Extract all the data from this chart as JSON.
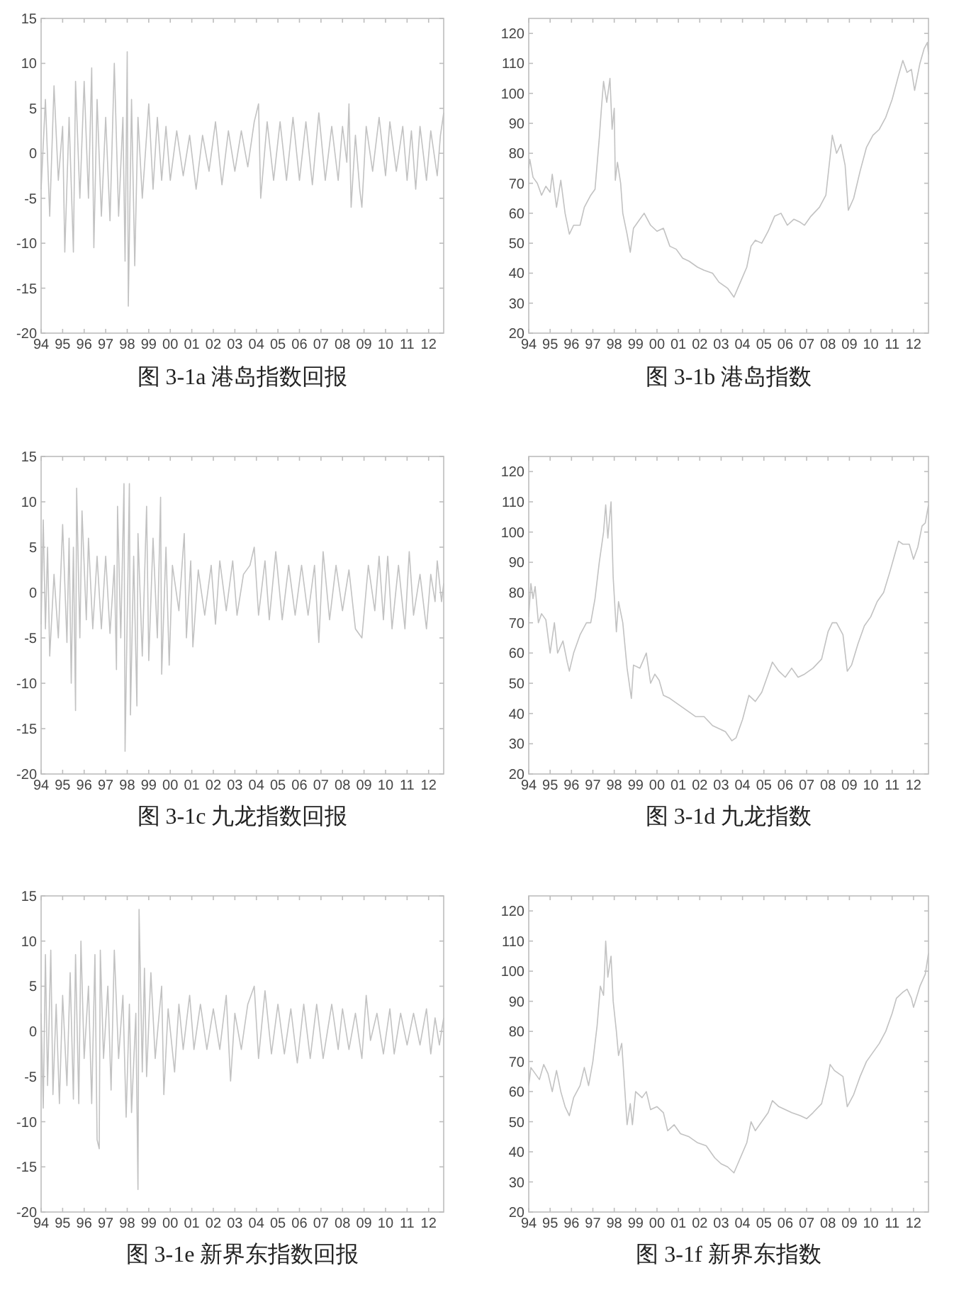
{
  "chart_data": [
    {
      "type": "line",
      "title": "图 3-1a 港岛指数回报",
      "color": "#c2c2c2",
      "xlim": [
        1994,
        2012.7
      ],
      "ylim": [
        -20,
        15
      ],
      "yticks": [
        -20,
        -15,
        -10,
        -5,
        0,
        5,
        10,
        15
      ],
      "xticks": [
        {
          "value": 1994,
          "label": "94"
        },
        {
          "value": 1995,
          "label": "95"
        },
        {
          "value": 1996,
          "label": "96"
        },
        {
          "value": 1997,
          "label": "97"
        },
        {
          "value": 1998,
          "label": "98"
        },
        {
          "value": 1999,
          "label": "99"
        },
        {
          "value": 2000,
          "label": "00"
        },
        {
          "value": 2001,
          "label": "01"
        },
        {
          "value": 2002,
          "label": "02"
        },
        {
          "value": 2003,
          "label": "03"
        },
        {
          "value": 2004,
          "label": "04"
        },
        {
          "value": 2005,
          "label": "05"
        },
        {
          "value": 2006,
          "label": "06"
        },
        {
          "value": 2007,
          "label": "07"
        },
        {
          "value": 2008,
          "label": "08"
        },
        {
          "value": 2009,
          "label": "09"
        },
        {
          "value": 2010,
          "label": "10"
        },
        {
          "value": 2011,
          "label": "11"
        },
        {
          "value": 2012,
          "label": "12"
        }
      ],
      "x": [
        1994.0,
        1994.2,
        1994.4,
        1994.6,
        1994.8,
        1995.0,
        1995.1,
        1995.3,
        1995.5,
        1995.6,
        1995.8,
        1996.0,
        1996.2,
        1996.35,
        1996.45,
        1996.6,
        1996.8,
        1997.0,
        1997.2,
        1997.4,
        1997.6,
        1997.8,
        1997.9,
        1998.0,
        1998.05,
        1998.2,
        1998.35,
        1998.5,
        1998.7,
        1999.0,
        1999.2,
        1999.4,
        1999.6,
        1999.8,
        2000.0,
        2000.3,
        2000.6,
        2000.9,
        2001.2,
        2001.5,
        2001.8,
        2002.1,
        2002.4,
        2002.7,
        2003.0,
        2003.3,
        2003.6,
        2003.9,
        2004.1,
        2004.2,
        2004.5,
        2004.8,
        2005.1,
        2005.4,
        2005.7,
        2006.0,
        2006.3,
        2006.6,
        2006.9,
        2007.2,
        2007.5,
        2007.8,
        2008.0,
        2008.2,
        2008.3,
        2008.4,
        2008.6,
        2008.8,
        2008.9,
        2009.1,
        2009.4,
        2009.7,
        2010.0,
        2010.2,
        2010.5,
        2010.8,
        2011.0,
        2011.2,
        2011.4,
        2011.6,
        2011.9,
        2012.1,
        2012.4,
        2012.55,
        2012.7
      ],
      "values": [
        -4,
        6,
        -7,
        7.5,
        -3,
        3,
        -11,
        4,
        -11,
        8,
        -5,
        8,
        -5,
        9.5,
        -10.5,
        6,
        -7,
        4,
        -7.5,
        10,
        -7,
        4,
        -12,
        11.3,
        -17,
        6,
        -12.5,
        4,
        -5,
        5.5,
        -4,
        4,
        -3,
        3,
        -3,
        2.5,
        -2.5,
        2,
        -4,
        2,
        -2,
        3.5,
        -3.5,
        2.5,
        -2,
        2.5,
        -1.5,
        3.5,
        5.5,
        -5,
        3.5,
        -3,
        3.5,
        -3,
        4,
        -3,
        3.5,
        -3.5,
        4.5,
        -3,
        3,
        -3,
        3,
        -1,
        5.5,
        -6,
        2,
        -4,
        -6,
        3,
        -2,
        4,
        -2.5,
        3.5,
        -2,
        3,
        -3,
        2.5,
        -4,
        3,
        -3,
        2.5,
        -2.5,
        2,
        4.5
      ]
    },
    {
      "type": "line",
      "title": "图 3-1b 港岛指数",
      "color": "#c2c2c2",
      "xlim": [
        1994,
        2012.7
      ],
      "ylim": [
        20,
        125
      ],
      "yticks": [
        20,
        30,
        40,
        50,
        60,
        70,
        80,
        90,
        100,
        110,
        120
      ],
      "xticks": [
        {
          "value": 1994,
          "label": "94"
        },
        {
          "value": 1995,
          "label": "95"
        },
        {
          "value": 1996,
          "label": "96"
        },
        {
          "value": 1997,
          "label": "97"
        },
        {
          "value": 1998,
          "label": "98"
        },
        {
          "value": 1999,
          "label": "99"
        },
        {
          "value": 2000,
          "label": "00"
        },
        {
          "value": 2001,
          "label": "01"
        },
        {
          "value": 2002,
          "label": "02"
        },
        {
          "value": 2003,
          "label": "03"
        },
        {
          "value": 2004,
          "label": "04"
        },
        {
          "value": 2005,
          "label": "05"
        },
        {
          "value": 2006,
          "label": "06"
        },
        {
          "value": 2007,
          "label": "07"
        },
        {
          "value": 2008,
          "label": "08"
        },
        {
          "value": 2009,
          "label": "09"
        },
        {
          "value": 2010,
          "label": "10"
        },
        {
          "value": 2011,
          "label": "11"
        },
        {
          "value": 2012,
          "label": "12"
        }
      ],
      "x": [
        1994.0,
        1994.05,
        1994.2,
        1994.4,
        1994.6,
        1994.8,
        1995.0,
        1995.1,
        1995.3,
        1995.5,
        1995.7,
        1995.9,
        1996.1,
        1996.4,
        1996.6,
        1996.9,
        1997.1,
        1997.3,
        1997.4,
        1997.5,
        1997.65,
        1997.8,
        1997.9,
        1998.0,
        1998.05,
        1998.15,
        1998.3,
        1998.4,
        1998.6,
        1998.75,
        1998.9,
        1999.2,
        1999.4,
        1999.7,
        2000.0,
        2000.3,
        2000.6,
        2000.9,
        2001.2,
        2001.5,
        2001.9,
        2002.2,
        2002.6,
        2002.9,
        2003.3,
        2003.6,
        2003.9,
        2004.2,
        2004.4,
        2004.6,
        2004.9,
        2005.2,
        2005.5,
        2005.8,
        2006.1,
        2006.4,
        2006.7,
        2006.9,
        2007.2,
        2007.6,
        2007.9,
        2008.1,
        2008.2,
        2008.4,
        2008.6,
        2008.8,
        2008.95,
        2009.2,
        2009.5,
        2009.8,
        2010.1,
        2010.4,
        2010.7,
        2011.0,
        2011.3,
        2011.5,
        2011.7,
        2011.9,
        2012.05,
        2012.3,
        2012.5,
        2012.65,
        2012.7
      ],
      "values": [
        75,
        78,
        72,
        70,
        66,
        69,
        67,
        73,
        62,
        71,
        60,
        53,
        56,
        56,
        62,
        66,
        68,
        85,
        95,
        104,
        97,
        105,
        88,
        95,
        71,
        77,
        70,
        60,
        53,
        47,
        55,
        58,
        60,
        56,
        54,
        55,
        49,
        48,
        45,
        44,
        42,
        41,
        40,
        37,
        35,
        32,
        37,
        42,
        49,
        51,
        50,
        54,
        59,
        60,
        56,
        58,
        57,
        56,
        59,
        62,
        66,
        79,
        86,
        80,
        83,
        76,
        61,
        65,
        74,
        82,
        86,
        88,
        92,
        98,
        106,
        111,
        107,
        108,
        101,
        110,
        115,
        117,
        113
      ]
    },
    {
      "type": "line",
      "title": "图 3-1c 九龙指数回报",
      "color": "#c2c2c2",
      "xlim": [
        1994,
        2012.7
      ],
      "ylim": [
        -20,
        15
      ],
      "yticks": [
        -20,
        -15,
        -10,
        -5,
        0,
        5,
        10,
        15
      ],
      "xticks": [
        {
          "value": 1994,
          "label": "94"
        },
        {
          "value": 1995,
          "label": "95"
        },
        {
          "value": 1996,
          "label": "96"
        },
        {
          "value": 1997,
          "label": "97"
        },
        {
          "value": 1998,
          "label": "98"
        },
        {
          "value": 1999,
          "label": "99"
        },
        {
          "value": 2000,
          "label": "00"
        },
        {
          "value": 2001,
          "label": "01"
        },
        {
          "value": 2002,
          "label": "02"
        },
        {
          "value": 2003,
          "label": "03"
        },
        {
          "value": 2004,
          "label": "04"
        },
        {
          "value": 2005,
          "label": "05"
        },
        {
          "value": 2006,
          "label": "06"
        },
        {
          "value": 2007,
          "label": "07"
        },
        {
          "value": 2008,
          "label": "08"
        },
        {
          "value": 2009,
          "label": "09"
        },
        {
          "value": 2010,
          "label": "10"
        },
        {
          "value": 2011,
          "label": "11"
        },
        {
          "value": 2012,
          "label": "12"
        }
      ],
      "x": [
        1994.0,
        1994.1,
        1994.2,
        1994.3,
        1994.4,
        1994.6,
        1994.8,
        1995.0,
        1995.2,
        1995.3,
        1995.4,
        1995.5,
        1995.6,
        1995.65,
        1995.8,
        1995.9,
        1996.1,
        1996.2,
        1996.4,
        1996.6,
        1996.8,
        1997.0,
        1997.2,
        1997.4,
        1997.5,
        1997.55,
        1997.7,
        1997.85,
        1997.9,
        1998.1,
        1998.15,
        1998.3,
        1998.45,
        1998.5,
        1998.7,
        1998.9,
        1999.0,
        1999.2,
        1999.4,
        1999.55,
        1999.6,
        1999.8,
        1999.95,
        2000.1,
        2000.4,
        2000.65,
        2000.75,
        2000.95,
        2001.05,
        2001.3,
        2001.6,
        2001.9,
        2002.1,
        2002.3,
        2002.6,
        2002.9,
        2003.1,
        2003.4,
        2003.7,
        2003.9,
        2004.1,
        2004.4,
        2004.6,
        2004.9,
        2005.2,
        2005.5,
        2005.8,
        2006.1,
        2006.4,
        2006.7,
        2006.9,
        2007.1,
        2007.4,
        2007.7,
        2008.0,
        2008.3,
        2008.6,
        2008.9,
        2009.2,
        2009.5,
        2009.7,
        2009.9,
        2010.1,
        2010.3,
        2010.6,
        2010.9,
        2011.1,
        2011.3,
        2011.6,
        2011.9,
        2012.1,
        2012.3,
        2012.4,
        2012.6,
        2012.7
      ],
      "values": [
        -3.5,
        8,
        -4,
        5,
        -7,
        2,
        -5,
        7.5,
        -5.5,
        6,
        -10,
        5,
        -13,
        11.5,
        -5,
        9,
        -3,
        6,
        -4,
        4,
        -4,
        4,
        -4.5,
        3,
        -8.5,
        9.5,
        -5,
        12,
        -17.5,
        12,
        -13.5,
        4,
        -12.5,
        6.5,
        -7,
        9.5,
        -7.5,
        6,
        -5,
        10.5,
        -9,
        5,
        -8,
        3,
        -2,
        6.5,
        -5,
        3.5,
        -6,
        2.5,
        -2.5,
        3,
        -3.5,
        3.5,
        -2,
        3.5,
        -2.5,
        2,
        3,
        5,
        -2.5,
        3.5,
        -3,
        4.5,
        -3,
        3,
        -2.5,
        3,
        -2.5,
        3,
        -5.5,
        4.5,
        -3,
        3,
        -2,
        2.5,
        -4,
        -5,
        3,
        -2,
        4,
        -3,
        4,
        -4,
        3,
        -4,
        4.5,
        -2.5,
        2,
        -4,
        2,
        -1,
        3.5,
        -1,
        1
      ]
    },
    {
      "type": "line",
      "title": "图 3-1d 九龙指数",
      "color": "#c2c2c2",
      "xlim": [
        1994,
        2012.7
      ],
      "ylim": [
        20,
        125
      ],
      "yticks": [
        20,
        30,
        40,
        50,
        60,
        70,
        80,
        90,
        100,
        110,
        120
      ],
      "xticks": [
        {
          "value": 1994,
          "label": "94"
        },
        {
          "value": 1995,
          "label": "95"
        },
        {
          "value": 1996,
          "label": "96"
        },
        {
          "value": 1997,
          "label": "97"
        },
        {
          "value": 1998,
          "label": "98"
        },
        {
          "value": 1999,
          "label": "99"
        },
        {
          "value": 2000,
          "label": "00"
        },
        {
          "value": 2001,
          "label": "01"
        },
        {
          "value": 2002,
          "label": "02"
        },
        {
          "value": 2003,
          "label": "03"
        },
        {
          "value": 2004,
          "label": "04"
        },
        {
          "value": 2005,
          "label": "05"
        },
        {
          "value": 2006,
          "label": "06"
        },
        {
          "value": 2007,
          "label": "07"
        },
        {
          "value": 2008,
          "label": "08"
        },
        {
          "value": 2009,
          "label": "09"
        },
        {
          "value": 2010,
          "label": "10"
        },
        {
          "value": 2011,
          "label": "11"
        },
        {
          "value": 2012,
          "label": "12"
        }
      ],
      "x": [
        1994.0,
        1994.1,
        1994.2,
        1994.3,
        1994.45,
        1994.6,
        1994.8,
        1995.0,
        1995.2,
        1995.35,
        1995.6,
        1995.8,
        1995.9,
        1996.1,
        1996.4,
        1996.7,
        1996.9,
        1997.1,
        1997.3,
        1997.5,
        1997.6,
        1997.7,
        1997.85,
        1997.95,
        1998.1,
        1998.2,
        1998.4,
        1998.6,
        1998.8,
        1998.9,
        1999.2,
        1999.5,
        1999.7,
        1999.9,
        2000.1,
        2000.3,
        2000.6,
        2001.0,
        2001.4,
        2001.8,
        2002.2,
        2002.6,
        2002.9,
        2003.2,
        2003.5,
        2003.7,
        2004.0,
        2004.3,
        2004.6,
        2004.9,
        2005.2,
        2005.4,
        2005.7,
        2006.0,
        2006.3,
        2006.6,
        2006.9,
        2007.3,
        2007.7,
        2008.0,
        2008.2,
        2008.4,
        2008.7,
        2008.9,
        2009.1,
        2009.4,
        2009.7,
        2010.0,
        2010.3,
        2010.6,
        2010.9,
        2011.1,
        2011.3,
        2011.5,
        2011.8,
        2012.0,
        2012.2,
        2012.4,
        2012.55,
        2012.7
      ],
      "values": [
        72,
        83,
        78,
        82,
        70,
        73,
        71,
        60,
        70,
        60,
        64,
        57,
        54,
        60,
        66,
        70,
        70,
        78,
        90,
        100,
        109,
        98,
        110,
        85,
        67,
        77,
        70,
        55,
        45,
        56,
        55,
        60,
        50,
        53,
        51,
        46,
        45,
        43,
        41,
        39,
        39,
        36,
        35,
        34,
        31,
        32,
        38,
        46,
        44,
        47,
        53,
        57,
        54,
        52,
        55,
        52,
        53,
        55,
        58,
        67,
        70,
        70,
        66,
        54,
        56,
        63,
        69,
        72,
        77,
        80,
        87,
        92,
        97,
        96,
        96,
        91,
        95,
        102,
        103,
        109
      ]
    },
    {
      "type": "line",
      "title": "图 3-1e 新界东指数回报",
      "color": "#c2c2c2",
      "xlim": [
        1994,
        2012.7
      ],
      "ylim": [
        -20,
        15
      ],
      "yticks": [
        -20,
        -15,
        -10,
        -5,
        0,
        5,
        10,
        15
      ],
      "xticks": [
        {
          "value": 1994,
          "label": "94"
        },
        {
          "value": 1995,
          "label": "95"
        },
        {
          "value": 1996,
          "label": "96"
        },
        {
          "value": 1997,
          "label": "97"
        },
        {
          "value": 1998,
          "label": "98"
        },
        {
          "value": 1999,
          "label": "99"
        },
        {
          "value": 2000,
          "label": "00"
        },
        {
          "value": 2001,
          "label": "01"
        },
        {
          "value": 2002,
          "label": "02"
        },
        {
          "value": 2003,
          "label": "03"
        },
        {
          "value": 2004,
          "label": "04"
        },
        {
          "value": 2005,
          "label": "05"
        },
        {
          "value": 2006,
          "label": "06"
        },
        {
          "value": 2007,
          "label": "07"
        },
        {
          "value": 2008,
          "label": "08"
        },
        {
          "value": 2009,
          "label": "09"
        },
        {
          "value": 2010,
          "label": "10"
        },
        {
          "value": 2011,
          "label": "11"
        },
        {
          "value": 2012,
          "label": "12"
        }
      ],
      "x": [
        1994.0,
        1994.1,
        1994.2,
        1994.3,
        1994.45,
        1994.55,
        1994.7,
        1994.85,
        1995.0,
        1995.2,
        1995.35,
        1995.5,
        1995.6,
        1995.75,
        1995.85,
        1996.0,
        1996.2,
        1996.35,
        1996.5,
        1996.6,
        1996.7,
        1996.75,
        1996.9,
        1997.1,
        1997.25,
        1997.4,
        1997.6,
        1997.8,
        1997.95,
        1998.1,
        1998.2,
        1998.4,
        1998.5,
        1998.55,
        1998.7,
        1998.8,
        1998.9,
        1999.1,
        1999.3,
        1999.6,
        1999.7,
        1999.9,
        2000.2,
        2000.4,
        2000.6,
        2000.9,
        2001.1,
        2001.4,
        2001.7,
        2002.0,
        2002.3,
        2002.6,
        2002.8,
        2003.0,
        2003.3,
        2003.6,
        2003.9,
        2004.1,
        2004.4,
        2004.7,
        2005.0,
        2005.3,
        2005.6,
        2005.9,
        2006.2,
        2006.5,
        2006.8,
        2007.1,
        2007.5,
        2007.8,
        2008.0,
        2008.3,
        2008.6,
        2008.9,
        2009.1,
        2009.3,
        2009.6,
        2009.9,
        2010.2,
        2010.4,
        2010.7,
        2011.0,
        2011.3,
        2011.6,
        2011.9,
        2012.1,
        2012.3,
        2012.5,
        2012.7
      ],
      "values": [
        2,
        -8.5,
        8.5,
        -6,
        9,
        -7,
        3,
        -8,
        4,
        -6,
        6.5,
        -7.5,
        8.5,
        -8,
        10,
        -3,
        5,
        -8,
        8.5,
        -12,
        -13,
        9,
        -3,
        5,
        -6.5,
        9,
        -3,
        4,
        -9.5,
        3,
        -9,
        2,
        -17.5,
        13.5,
        -4.5,
        7,
        -5,
        6.5,
        -3,
        5,
        -7,
        2.5,
        -4.5,
        3,
        -2,
        4,
        -2,
        3,
        -2,
        2.5,
        -2,
        4,
        -5.5,
        2,
        -2,
        3,
        5,
        -3,
        4.5,
        -2.5,
        3,
        -2.5,
        2.5,
        -3.5,
        3,
        -3,
        3,
        -3,
        3,
        -2,
        2.5,
        -2,
        2,
        -3,
        4,
        -1,
        2,
        -2.5,
        2.5,
        -2.5,
        2,
        -1.5,
        2,
        -1.5,
        2.5,
        -2.5,
        1.5,
        -1.5,
        1.5
      ]
    },
    {
      "type": "line",
      "title": "图 3-1f 新界东指数",
      "color": "#c2c2c2",
      "xlim": [
        1994,
        2012.7
      ],
      "ylim": [
        20,
        125
      ],
      "yticks": [
        20,
        30,
        40,
        50,
        60,
        70,
        80,
        90,
        100,
        110,
        120
      ],
      "xticks": [
        {
          "value": 1994,
          "label": "94"
        },
        {
          "value": 1995,
          "label": "95"
        },
        {
          "value": 1996,
          "label": "96"
        },
        {
          "value": 1997,
          "label": "97"
        },
        {
          "value": 1998,
          "label": "98"
        },
        {
          "value": 1999,
          "label": "99"
        },
        {
          "value": 2000,
          "label": "00"
        },
        {
          "value": 2001,
          "label": "01"
        },
        {
          "value": 2002,
          "label": "02"
        },
        {
          "value": 2003,
          "label": "03"
        },
        {
          "value": 2004,
          "label": "04"
        },
        {
          "value": 2005,
          "label": "05"
        },
        {
          "value": 2006,
          "label": "06"
        },
        {
          "value": 2007,
          "label": "07"
        },
        {
          "value": 2008,
          "label": "08"
        },
        {
          "value": 2009,
          "label": "09"
        },
        {
          "value": 2010,
          "label": "10"
        },
        {
          "value": 2011,
          "label": "11"
        },
        {
          "value": 2012,
          "label": "12"
        }
      ],
      "x": [
        1994.0,
        1994.1,
        1994.3,
        1994.5,
        1994.7,
        1994.9,
        1995.1,
        1995.3,
        1995.5,
        1995.7,
        1995.9,
        1996.1,
        1996.4,
        1996.6,
        1996.8,
        1997.0,
        1997.2,
        1997.35,
        1997.5,
        1997.6,
        1997.7,
        1997.85,
        1997.95,
        1998.1,
        1998.2,
        1998.35,
        1998.5,
        1998.6,
        1998.75,
        1998.85,
        1999.0,
        1999.3,
        1999.5,
        1999.7,
        2000.0,
        2000.3,
        2000.5,
        2000.8,
        2001.1,
        2001.5,
        2001.9,
        2002.3,
        2002.7,
        2003.0,
        2003.3,
        2003.6,
        2003.9,
        2004.2,
        2004.4,
        2004.6,
        2004.9,
        2005.2,
        2005.4,
        2005.7,
        2006.0,
        2006.3,
        2006.7,
        2007.0,
        2007.3,
        2007.7,
        2008.0,
        2008.1,
        2008.3,
        2008.7,
        2008.9,
        2009.2,
        2009.5,
        2009.8,
        2010.1,
        2010.4,
        2010.7,
        2011.0,
        2011.2,
        2011.5,
        2011.7,
        2011.9,
        2012.0,
        2012.3,
        2012.55,
        2012.7
      ],
      "values": [
        62,
        68,
        66,
        64,
        69,
        66,
        60,
        67,
        60,
        55,
        52,
        58,
        62,
        68,
        62,
        70,
        82,
        95,
        92,
        110,
        98,
        105,
        90,
        80,
        72,
        76,
        60,
        49,
        56,
        49,
        60,
        58,
        60,
        54,
        55,
        53,
        47,
        49,
        46,
        45,
        43,
        42,
        38,
        36,
        35,
        33,
        38,
        43,
        50,
        47,
        50,
        53,
        57,
        55,
        54,
        53,
        52,
        51,
        53,
        56,
        65,
        69,
        67,
        65,
        55,
        59,
        65,
        70,
        73,
        76,
        80,
        86,
        91,
        93,
        94,
        91,
        88,
        95,
        99,
        106
      ]
    }
  ]
}
